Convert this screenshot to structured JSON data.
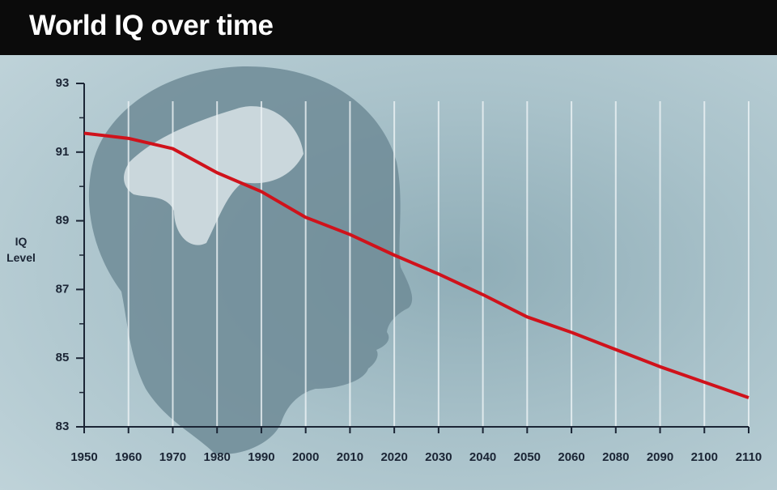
{
  "chart_data": {
    "type": "line",
    "title": "World IQ over time",
    "y_label": "IQ Level",
    "categories": [
      "1950",
      "1960",
      "1970",
      "1980",
      "1990",
      "2000",
      "2010",
      "2020",
      "2030",
      "2040",
      "2050",
      "2060",
      "2080",
      "2090",
      "2100",
      "2110"
    ],
    "series": [
      {
        "name": "World IQ",
        "color": "#d0121b",
        "values": [
          91.55,
          91.4,
          91.1,
          90.4,
          89.85,
          89.1,
          88.6,
          88.0,
          87.45,
          86.85,
          86.2,
          85.75,
          85.25,
          84.75,
          84.3,
          83.85
        ]
      }
    ],
    "ylim": [
      83,
      93
    ],
    "yticks": [
      83,
      85,
      87,
      89,
      91,
      93
    ],
    "grid": true
  }
}
